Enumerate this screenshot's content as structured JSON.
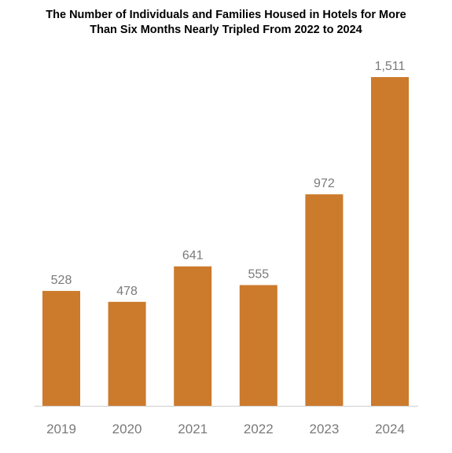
{
  "chart_data": {
    "type": "bar",
    "title_lines": [
      "The Number of Individuals and Families Housed in Hotels for More",
      "Than Six Months Nearly Tripled From 2022 to 2024"
    ],
    "categories": [
      "2019",
      "2020",
      "2021",
      "2022",
      "2023",
      "2024"
    ],
    "values": [
      528,
      478,
      641,
      555,
      972,
      1511
    ],
    "value_labels": [
      "528",
      "478",
      "641",
      "555",
      "972",
      "1,511"
    ],
    "xlabel": "",
    "ylabel": "",
    "ylim": [
      0,
      1511
    ],
    "grid": false,
    "bar_color": "#cc7a2c",
    "axis_color": "#cfcfcf",
    "label_color": "#7a7a7a"
  }
}
